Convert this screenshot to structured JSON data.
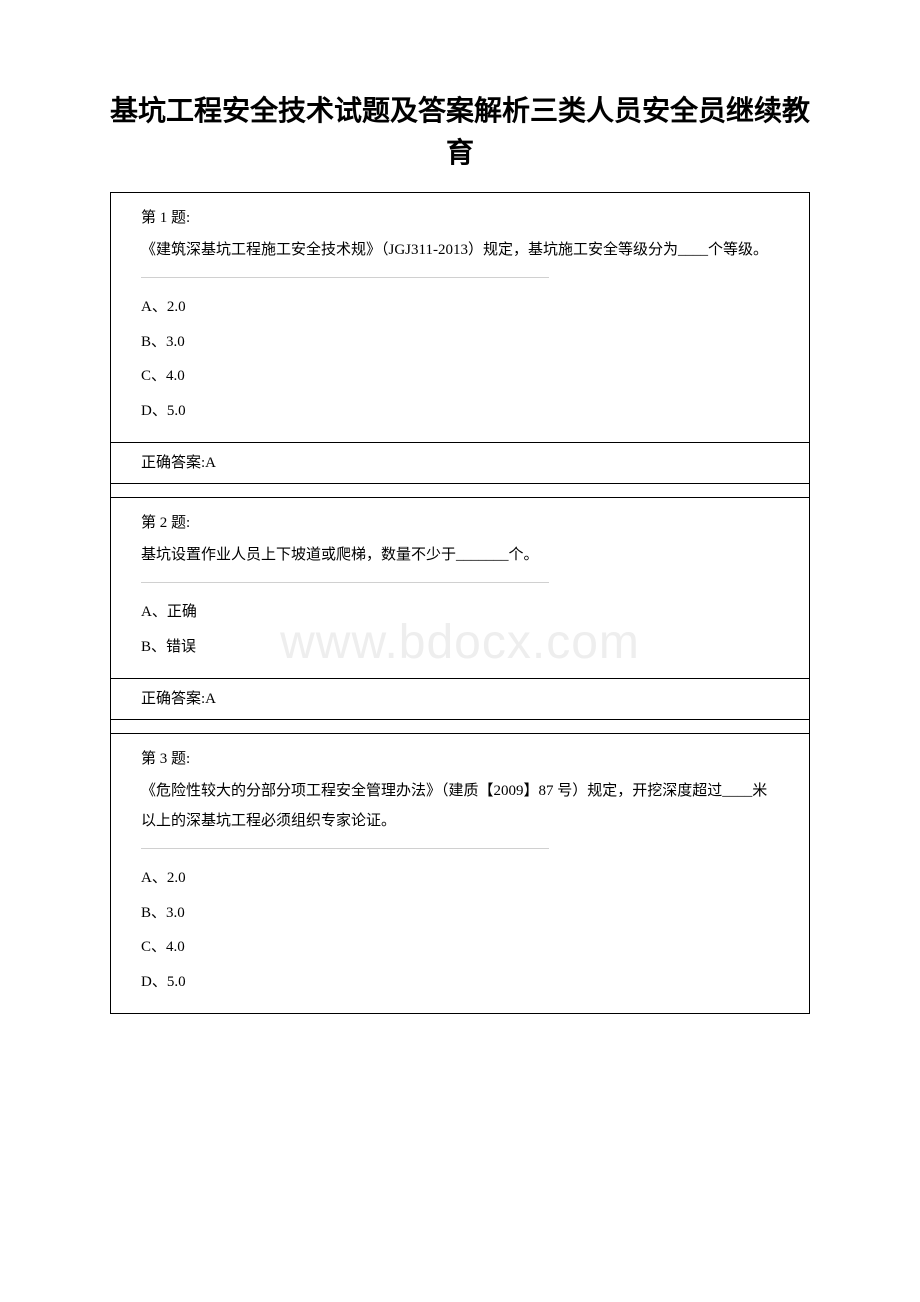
{
  "watermark": "www.bdocx.com",
  "title": "基坑工程安全技术试题及答案解析三类人员安全员继续教育",
  "questions": [
    {
      "label": "第 1 题:",
      "text": "《建筑深基坑工程施工安全技术规》（JGJ311-2013）规定，基坑施工安全等级分为____个等级。",
      "options": [
        "A、2.0",
        "B、3.0",
        "C、4.0",
        "D、5.0"
      ],
      "answer": "正确答案:A"
    },
    {
      "label": "第 2 题:",
      "text": "基坑设置作业人员上下坡道或爬梯，数量不少于_______个。",
      "options": [
        "A、正确",
        "B、错误"
      ],
      "answer": "正确答案:A"
    },
    {
      "label": "第 3 题:",
      "text": "《危险性较大的分部分项工程安全管理办法》（建质【2009】87 号）规定，开挖深度超过____米以上的深基坑工程必须组织专家论证。",
      "options": [
        "A、2.0",
        "B、3.0",
        "C、4.0",
        "D、5.0"
      ],
      "answer": ""
    }
  ],
  "colors": {
    "border": "#000000",
    "divider": "#d0d0d0",
    "watermark": "#eeeeee",
    "text": "#000000",
    "background": "#ffffff"
  }
}
